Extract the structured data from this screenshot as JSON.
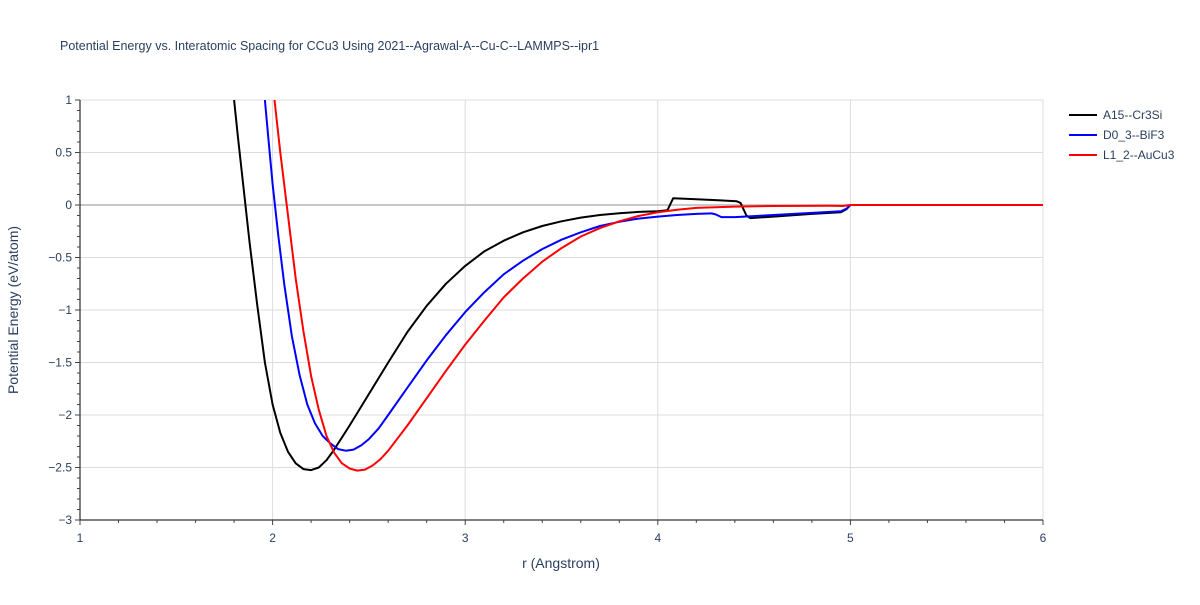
{
  "chart_data": {
    "type": "line",
    "title": "Potential Energy vs. Interatomic Spacing for CCu3 Using 2021--Agrawal-A--Cu-C--LAMMPS--ipr1",
    "xlabel": "r (Angstrom)",
    "ylabel": "Potential Energy (eV/atom)",
    "xlim": [
      1,
      6
    ],
    "ylim": [
      -3,
      1
    ],
    "x_ticks": [
      1,
      2,
      3,
      4,
      5,
      6
    ],
    "x_tick_labels": [
      "1",
      "2",
      "3",
      "4",
      "5",
      "6"
    ],
    "y_ticks": [
      1,
      0.5,
      0,
      -0.5,
      -1,
      -1.5,
      -2,
      -2.5,
      -3
    ],
    "y_tick_labels": [
      "1",
      "0.5",
      "0",
      "−0.5",
      "−1",
      "−1.5",
      "−2",
      "−2.5",
      "−3"
    ],
    "grid": true,
    "legend_position": "top-right",
    "series": [
      {
        "name": "A15--Cr3Si",
        "color": "#000000",
        "points": [
          [
            1.8,
            1.0
          ],
          [
            1.82,
            0.65
          ],
          [
            1.85,
            0.15
          ],
          [
            1.88,
            -0.35
          ],
          [
            1.92,
            -0.95
          ],
          [
            1.96,
            -1.5
          ],
          [
            2.0,
            -1.9
          ],
          [
            2.04,
            -2.17
          ],
          [
            2.08,
            -2.35
          ],
          [
            2.12,
            -2.46
          ],
          [
            2.16,
            -2.515
          ],
          [
            2.2,
            -2.525
          ],
          [
            2.24,
            -2.5
          ],
          [
            2.28,
            -2.43
          ],
          [
            2.32,
            -2.33
          ],
          [
            2.4,
            -2.1
          ],
          [
            2.5,
            -1.8
          ],
          [
            2.6,
            -1.5
          ],
          [
            2.7,
            -1.21
          ],
          [
            2.8,
            -0.96
          ],
          [
            2.9,
            -0.75
          ],
          [
            3.0,
            -0.58
          ],
          [
            3.1,
            -0.44
          ],
          [
            3.2,
            -0.34
          ],
          [
            3.3,
            -0.26
          ],
          [
            3.4,
            -0.2
          ],
          [
            3.5,
            -0.155
          ],
          [
            3.6,
            -0.12
          ],
          [
            3.7,
            -0.095
          ],
          [
            3.8,
            -0.078
          ],
          [
            3.9,
            -0.066
          ],
          [
            4.0,
            -0.06
          ],
          [
            4.05,
            -0.05
          ],
          [
            4.08,
            0.065
          ],
          [
            4.2,
            0.055
          ],
          [
            4.3,
            0.047
          ],
          [
            4.41,
            0.035
          ],
          [
            4.43,
            0.02
          ],
          [
            4.46,
            -0.1
          ],
          [
            4.48,
            -0.125
          ],
          [
            4.6,
            -0.11
          ],
          [
            4.8,
            -0.085
          ],
          [
            4.95,
            -0.07
          ],
          [
            4.98,
            -0.04
          ],
          [
            5.0,
            0.0
          ],
          [
            6.0,
            0.0
          ]
        ]
      },
      {
        "name": "D0_3--BiF3",
        "color": "#0000ff",
        "points": [
          [
            1.96,
            1.0
          ],
          [
            1.98,
            0.6
          ],
          [
            2.0,
            0.2
          ],
          [
            2.03,
            -0.3
          ],
          [
            2.06,
            -0.75
          ],
          [
            2.1,
            -1.25
          ],
          [
            2.14,
            -1.62
          ],
          [
            2.18,
            -1.9
          ],
          [
            2.22,
            -2.08
          ],
          [
            2.26,
            -2.2
          ],
          [
            2.3,
            -2.27
          ],
          [
            2.34,
            -2.325
          ],
          [
            2.38,
            -2.34
          ],
          [
            2.42,
            -2.33
          ],
          [
            2.46,
            -2.29
          ],
          [
            2.5,
            -2.23
          ],
          [
            2.55,
            -2.13
          ],
          [
            2.6,
            -2.0
          ],
          [
            2.7,
            -1.74
          ],
          [
            2.8,
            -1.48
          ],
          [
            2.9,
            -1.24
          ],
          [
            3.0,
            -1.02
          ],
          [
            3.1,
            -0.83
          ],
          [
            3.2,
            -0.66
          ],
          [
            3.3,
            -0.53
          ],
          [
            3.4,
            -0.42
          ],
          [
            3.5,
            -0.33
          ],
          [
            3.6,
            -0.26
          ],
          [
            3.7,
            -0.2
          ],
          [
            3.8,
            -0.16
          ],
          [
            3.9,
            -0.13
          ],
          [
            4.0,
            -0.11
          ],
          [
            4.1,
            -0.095
          ],
          [
            4.2,
            -0.085
          ],
          [
            4.28,
            -0.08
          ],
          [
            4.3,
            -0.09
          ],
          [
            4.33,
            -0.115
          ],
          [
            4.4,
            -0.115
          ],
          [
            4.6,
            -0.095
          ],
          [
            4.8,
            -0.075
          ],
          [
            4.95,
            -0.06
          ],
          [
            4.98,
            -0.035
          ],
          [
            5.0,
            0.0
          ],
          [
            6.0,
            0.0
          ]
        ]
      },
      {
        "name": "L1_2--AuCu3",
        "color": "#ff0000",
        "points": [
          [
            2.01,
            1.0
          ],
          [
            2.04,
            0.5
          ],
          [
            2.08,
            -0.1
          ],
          [
            2.12,
            -0.7
          ],
          [
            2.16,
            -1.2
          ],
          [
            2.2,
            -1.63
          ],
          [
            2.24,
            -1.95
          ],
          [
            2.28,
            -2.2
          ],
          [
            2.32,
            -2.36
          ],
          [
            2.36,
            -2.46
          ],
          [
            2.4,
            -2.51
          ],
          [
            2.44,
            -2.53
          ],
          [
            2.48,
            -2.52
          ],
          [
            2.52,
            -2.48
          ],
          [
            2.56,
            -2.42
          ],
          [
            2.6,
            -2.34
          ],
          [
            2.7,
            -2.1
          ],
          [
            2.8,
            -1.84
          ],
          [
            2.9,
            -1.58
          ],
          [
            3.0,
            -1.33
          ],
          [
            3.1,
            -1.1
          ],
          [
            3.2,
            -0.88
          ],
          [
            3.3,
            -0.7
          ],
          [
            3.4,
            -0.54
          ],
          [
            3.5,
            -0.41
          ],
          [
            3.6,
            -0.3
          ],
          [
            3.7,
            -0.22
          ],
          [
            3.8,
            -0.155
          ],
          [
            3.9,
            -0.105
          ],
          [
            4.0,
            -0.07
          ],
          [
            4.1,
            -0.045
          ],
          [
            4.2,
            -0.028
          ],
          [
            4.4,
            -0.015
          ],
          [
            4.6,
            -0.01
          ],
          [
            4.9,
            -0.008
          ],
          [
            4.96,
            -0.01
          ],
          [
            5.0,
            0.0
          ],
          [
            6.0,
            0.0
          ]
        ]
      }
    ]
  }
}
